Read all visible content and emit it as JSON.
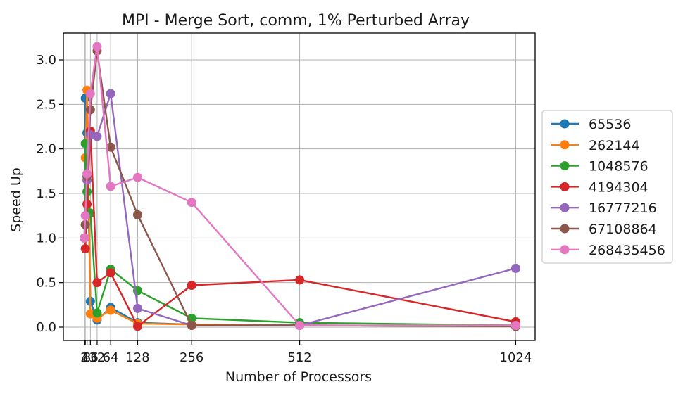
{
  "chart_data": {
    "type": "line",
    "title": "MPI - Merge Sort, comm, 1% Perturbed Array",
    "xlabel": "Number of Processors",
    "ylabel": "Speed Up",
    "xlim": [
      -48,
      1070
    ],
    "ylim": [
      -0.15,
      3.3
    ],
    "grid": true,
    "legend_position": "right",
    "x_ticks": [
      2,
      4,
      8,
      16,
      32,
      64,
      128,
      256,
      512,
      1024
    ],
    "x_tick_labels": [
      "2",
      "4",
      "8",
      "16",
      "32",
      "64",
      "128",
      "256",
      "512",
      "1024"
    ],
    "y_ticks": [
      0.0,
      0.5,
      1.0,
      1.5,
      2.0,
      2.5,
      3.0
    ],
    "y_tick_labels": [
      "0.0",
      "0.5",
      "1.0",
      "1.5",
      "2.0",
      "2.5",
      "3.0"
    ],
    "x": [
      2,
      4,
      8,
      16,
      32,
      64,
      128,
      256,
      512,
      1024
    ],
    "series": [
      {
        "name": "65536",
        "color": "#1f77b4",
        "values": [
          1.0,
          2.57,
          2.18,
          0.29,
          0.08,
          0.22,
          0.05,
          0.03,
          0.02,
          0.01
        ]
      },
      {
        "name": "262144",
        "color": "#ff7f0e",
        "values": [
          1.0,
          1.9,
          2.66,
          0.15,
          0.1,
          0.19,
          0.04,
          0.03,
          0.02,
          0.01
        ]
      },
      {
        "name": "1048576",
        "color": "#2ca02c",
        "values": [
          1.0,
          2.06,
          1.52,
          1.28,
          0.16,
          0.65,
          0.41,
          0.1,
          0.05,
          0.02
        ]
      },
      {
        "name": "4194304",
        "color": "#d62728",
        "values": [
          1.0,
          0.88,
          1.38,
          2.2,
          0.5,
          0.61,
          0.01,
          0.47,
          0.53,
          0.06
        ]
      },
      {
        "name": "16777216",
        "color": "#9467bd",
        "values": [
          1.0,
          1.15,
          1.65,
          2.16,
          2.14,
          2.62,
          0.21,
          0.02,
          0.02,
          0.66
        ]
      },
      {
        "name": "67108864",
        "color": "#8c564b",
        "values": [
          1.0,
          1.15,
          1.69,
          2.44,
          3.1,
          2.02,
          1.26,
          0.02,
          0.02,
          0.01
        ]
      },
      {
        "name": "268435456",
        "color": "#e377c2",
        "values": [
          1.0,
          1.25,
          1.72,
          2.62,
          3.15,
          1.58,
          1.68,
          1.4,
          0.02,
          0.02
        ]
      }
    ]
  }
}
